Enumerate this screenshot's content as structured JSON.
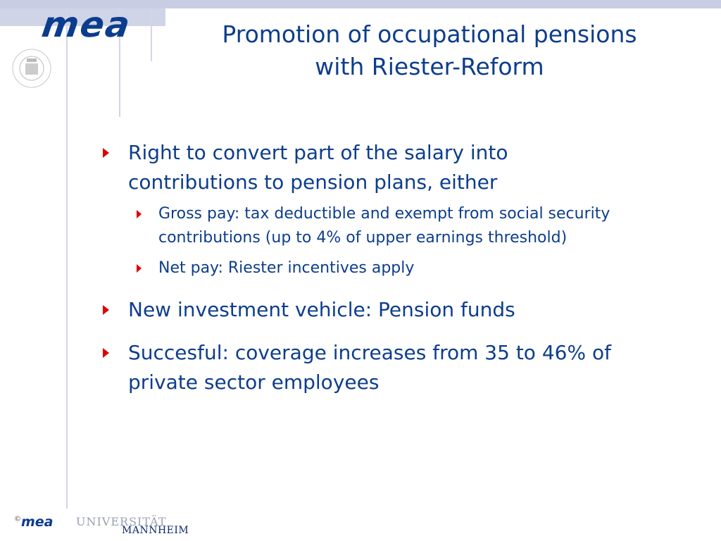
{
  "branding": {
    "logo_text": "mea",
    "seal_text": "IN OMNIBUS VERITAS · UNIVERSITÄT MANNHEIM",
    "footer_copyright": "©",
    "footer_logo": "mea",
    "footer_university_line1": "UNIVERSITÄT",
    "footer_university_line2": "MANNHEIM"
  },
  "slide": {
    "title_line1": "Promotion of occupational pensions",
    "title_line2": "with Riester-Reform",
    "bullets": [
      {
        "lines": [
          "Right to convert part of the salary into",
          "contributions to pension plans, either"
        ],
        "subbullets": [
          {
            "lines": [
              "Gross pay: tax deductible and exempt from social security",
              "contributions (up to 4% of upper earnings threshold)"
            ]
          },
          {
            "lines": [
              "Net pay: Riester incentives apply"
            ]
          }
        ]
      },
      {
        "lines": [
          "New investment vehicle: Pension funds"
        ]
      },
      {
        "lines": [
          "Succesful: coverage increases from 35 to 46% of",
          "private sector employees"
        ]
      }
    ]
  },
  "colors": {
    "text": "#0d3d8c",
    "bullet": "#e00000",
    "band": "#c8cde3"
  }
}
